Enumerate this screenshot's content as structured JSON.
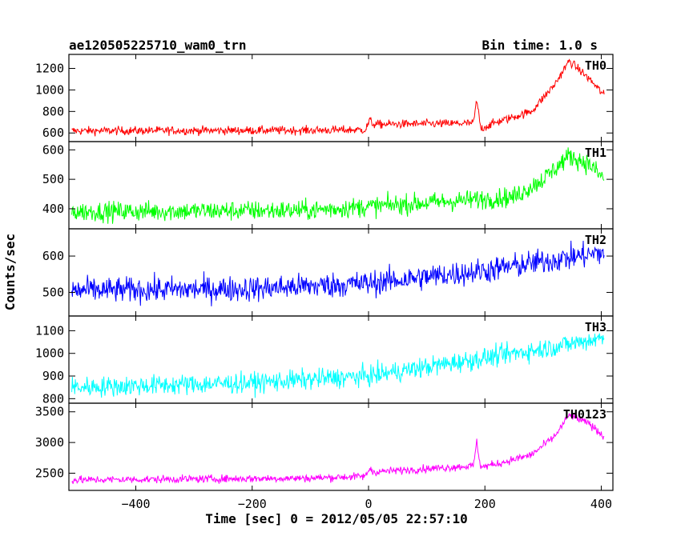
{
  "header": {
    "left_title": "ae120505225710_wam0_trn",
    "right_title": "Bin time: 1.0 s"
  },
  "chart_data": {
    "type": "line",
    "title": "ae120505225710_wam0_trn",
    "subtitle": "Bin time: 1.0 s",
    "xlabel": "Time [sec] 0 = 2012/05/05 22:57:10",
    "ylabel": "Counts/sec",
    "xlim": [
      -515,
      420
    ],
    "xticks": [
      -400,
      -200,
      0,
      200,
      400
    ],
    "x_tick_labels": [
      "−400",
      "−200",
      "0",
      "200",
      "400"
    ],
    "bin_time_s": 1.0,
    "grid": false,
    "panels": [
      {
        "name": "TH0",
        "color": "#ff0000",
        "ylim": [
          520,
          1330
        ],
        "yticks": [
          600,
          800,
          1000,
          1200
        ],
        "noise": 28,
        "profile": [
          [
            -510,
            620
          ],
          [
            -100,
            625
          ],
          [
            -5,
            630
          ],
          [
            2,
            720
          ],
          [
            8,
            680
          ],
          [
            180,
            690
          ],
          [
            186,
            900
          ],
          [
            193,
            640
          ],
          [
            220,
            700
          ],
          [
            280,
            800
          ],
          [
            320,
            1050
          ],
          [
            345,
            1270
          ],
          [
            380,
            1100
          ],
          [
            405,
            950
          ]
        ]
      },
      {
        "name": "TH1",
        "color": "#00ff00",
        "ylim": [
          332,
          628
        ],
        "yticks": [
          400,
          500,
          600
        ],
        "noise": 24,
        "profile": [
          [
            -510,
            390
          ],
          [
            -100,
            395
          ],
          [
            100,
            420
          ],
          [
            250,
            440
          ],
          [
            300,
            500
          ],
          [
            345,
            580
          ],
          [
            380,
            550
          ],
          [
            405,
            500
          ]
        ]
      },
      {
        "name": "TH2",
        "color": "#0000ff",
        "ylim": [
          435,
          675
        ],
        "yticks": [
          500,
          600
        ],
        "noise": 25,
        "profile": [
          [
            -510,
            505
          ],
          [
            -200,
            510
          ],
          [
            0,
            525
          ],
          [
            200,
            560
          ],
          [
            300,
            585
          ],
          [
            405,
            610
          ]
        ]
      },
      {
        "name": "TH3",
        "color": "#00ffff",
        "ylim": [
          780,
          1165
        ],
        "yticks": [
          800,
          900,
          1000,
          1100
        ],
        "noise": 32,
        "profile": [
          [
            -510,
            850
          ],
          [
            -200,
            870
          ],
          [
            0,
            900
          ],
          [
            150,
            960
          ],
          [
            300,
            1020
          ],
          [
            405,
            1070
          ]
        ]
      },
      {
        "name": "TH0123",
        "color": "#ff00ff",
        "ylim": [
          2220,
          3640
        ],
        "yticks": [
          2500,
          3000,
          3500
        ],
        "noise": 45,
        "profile": [
          [
            -510,
            2390
          ],
          [
            -100,
            2420
          ],
          [
            -5,
            2450
          ],
          [
            2,
            2580
          ],
          [
            8,
            2520
          ],
          [
            180,
            2620
          ],
          [
            186,
            3000
          ],
          [
            193,
            2600
          ],
          [
            220,
            2650
          ],
          [
            280,
            2800
          ],
          [
            320,
            3100
          ],
          [
            345,
            3450
          ],
          [
            380,
            3300
          ],
          [
            405,
            3100
          ]
        ]
      }
    ]
  }
}
